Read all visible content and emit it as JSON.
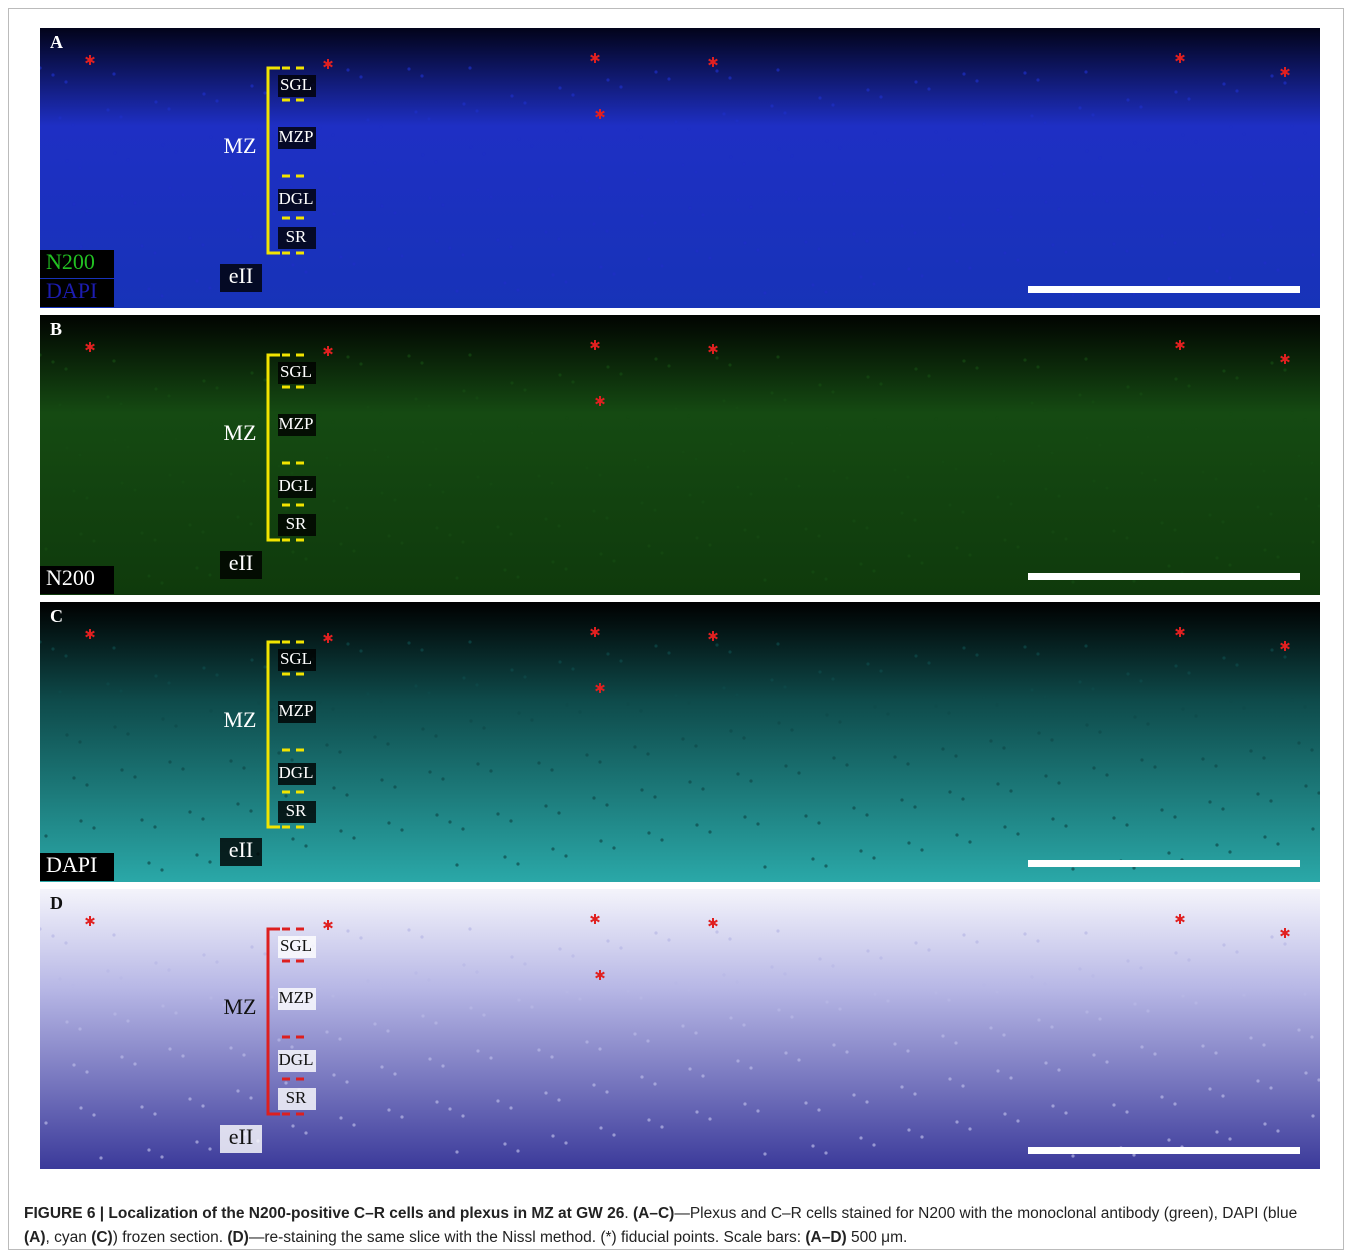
{
  "panels": [
    {
      "letter": "A",
      "zone": "MZ",
      "below": "eII",
      "layers": [
        "SGL",
        "MZP",
        "DGL",
        "SR"
      ],
      "stains": [
        {
          "name": "N200",
          "color": "#22c022"
        },
        {
          "name": "DAPI",
          "color": "#1c1cb0"
        }
      ],
      "background": [
        "#02031a",
        "#1e2fc4",
        "#1733b8"
      ],
      "bracket_color": "#f2e400",
      "label_color": "#ffffff",
      "box_color": "#000000"
    },
    {
      "letter": "B",
      "zone": "MZ",
      "below": "eII",
      "layers": [
        "SGL",
        "MZP",
        "DGL",
        "SR"
      ],
      "stains": [
        {
          "name": "N200",
          "color": "#ffffff"
        }
      ],
      "background": [
        "#010401",
        "#154a12",
        "#0f3a0c"
      ],
      "bracket_color": "#f2e400",
      "label_color": "#ffffff",
      "box_color": "#000000"
    },
    {
      "letter": "C",
      "zone": "MZ",
      "below": "eII",
      "layers": [
        "SGL",
        "MZP",
        "DGL",
        "SR"
      ],
      "stains": [
        {
          "name": "DAPI",
          "color": "#ffffff"
        }
      ],
      "background": [
        "#000000",
        "#0e4a4a",
        "#2aa8a8"
      ],
      "bracket_color": "#f2e400",
      "label_color": "#ffffff",
      "box_color": "#000000"
    },
    {
      "letter": "D",
      "zone": "MZ",
      "below": "eII",
      "layers": [
        "SGL",
        "MZP",
        "DGL",
        "SR"
      ],
      "stains": [],
      "background": [
        "#f4f4fb",
        "#b8b8e6",
        "#3b3a9a"
      ],
      "bracket_color": "#dd1f1f",
      "label_color": "#111111",
      "box_color": "#ffffff"
    }
  ],
  "caption": [
    {
      "text": "FIGURE 6 | Localization of the N200-positive C–R cells and plexus in MZ at GW 26",
      "bold": true
    },
    {
      "text": ". ",
      "bold": false
    },
    {
      "text": "(A–C)",
      "bold": true
    },
    {
      "text": "—Plexus and C–R cells stained for N200 with the monoclonal antibody (green), DAPI (blue ",
      "bold": false
    },
    {
      "text": "(A)",
      "bold": true
    },
    {
      "text": ", cyan ",
      "bold": false
    },
    {
      "text": "(C)",
      "bold": true
    },
    {
      "text": ") frozen section. ",
      "bold": false
    },
    {
      "text": "(D)",
      "bold": true
    },
    {
      "text": "—re-staining the same slice with the Nissl method. (*) fiducial points. Scale bars: ",
      "bold": false
    },
    {
      "text": "(A–D)",
      "bold": true
    },
    {
      "text": " 500 μm.",
      "bold": false
    }
  ]
}
